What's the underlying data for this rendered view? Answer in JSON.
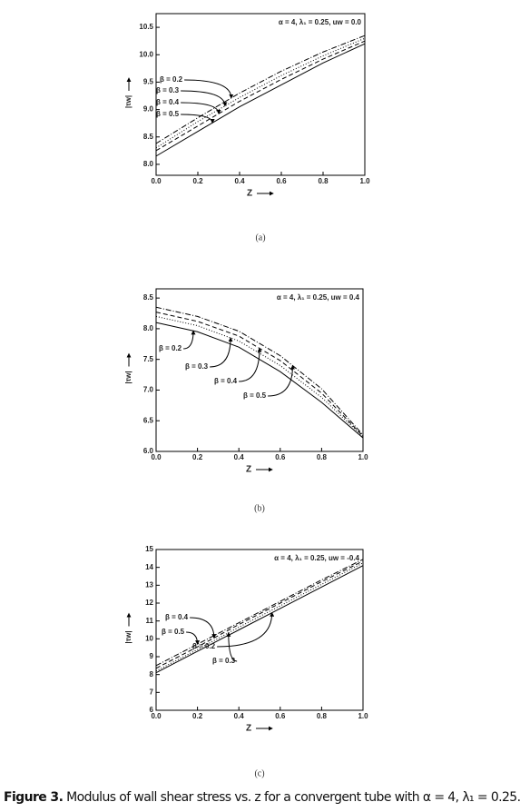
{
  "chart_data": [
    {
      "type": "line",
      "annotation": "α = 4, λ₁ = 0.25, uw = 0.0",
      "panel": "(a)",
      "x_label": "Z",
      "y_label": "|τw|",
      "x": [
        0,
        0.2,
        0.4,
        0.6,
        0.8,
        1.0
      ],
      "series": [
        {
          "name": "β = 0.2",
          "color": "#000000",
          "dash": "6 2 1 2",
          "values": [
            8.38,
            8.85,
            9.3,
            9.7,
            10.05,
            10.35
          ]
        },
        {
          "name": "β = 0.3",
          "color": "#000000",
          "dash": "1 2",
          "values": [
            8.3,
            8.78,
            9.22,
            9.62,
            9.98,
            10.3
          ]
        },
        {
          "name": "β = 0.4",
          "color": "#000000",
          "dash": "5 3",
          "values": [
            8.25,
            8.7,
            9.15,
            9.55,
            9.92,
            10.25
          ]
        },
        {
          "name": "β = 0.5",
          "color": "#000000",
          "dash": "none",
          "values": [
            8.15,
            8.6,
            9.05,
            9.45,
            9.85,
            10.2
          ]
        }
      ],
      "xlim": [
        0,
        1.0
      ],
      "xticks": [
        {
          "value": 0,
          "label": "0.0"
        },
        0.2,
        0.4,
        0.6,
        0.8,
        {
          "value": 1.0,
          "label": "1.0"
        }
      ],
      "ylim": [
        7.8,
        10.75
      ],
      "yticks": [
        {
          "value": 8.0,
          "label": "8.0"
        },
        8.5,
        {
          "value": 9.0,
          "label": "9.0"
        },
        9.5,
        {
          "value": 10.0,
          "label": "10.0"
        },
        10.5
      ]
    },
    {
      "type": "line",
      "annotation": "α = 4, λ₁ = 0.25, uw = 0.4",
      "panel": "(b)",
      "x_label": "Z",
      "y_label": "|τw|",
      "x": [
        0,
        0.2,
        0.4,
        0.6,
        0.8,
        1.0
      ],
      "series": [
        {
          "name": "β = 0.2",
          "color": "#000000",
          "dash": "none",
          "values": [
            8.1,
            7.95,
            7.7,
            7.3,
            6.8,
            6.22
          ]
        },
        {
          "name": "β = 0.3",
          "color": "#000000",
          "dash": "1 2",
          "values": [
            8.2,
            8.05,
            7.8,
            7.4,
            6.88,
            6.24
          ]
        },
        {
          "name": "β = 0.4",
          "color": "#000000",
          "dash": "5 3",
          "values": [
            8.27,
            8.12,
            7.88,
            7.48,
            6.95,
            6.25
          ]
        },
        {
          "name": "β = 0.5",
          "color": "#000000",
          "dash": "6 2 1 2",
          "values": [
            8.35,
            8.2,
            7.96,
            7.56,
            7.02,
            6.27
          ]
        }
      ],
      "xlim": [
        0,
        1.0
      ],
      "xticks": [
        {
          "value": 0,
          "label": "0.0"
        },
        0.2,
        0.4,
        0.6,
        0.8,
        {
          "value": 1.0,
          "label": "1.0"
        }
      ],
      "ylim": [
        6.0,
        8.65
      ],
      "yticks": [
        {
          "value": 6.0,
          "label": "6.0"
        },
        6.5,
        {
          "value": 7.0,
          "label": "7.0"
        },
        7.5,
        {
          "value": 8.0,
          "label": "8.0"
        },
        8.5
      ]
    },
    {
      "type": "line",
      "annotation": "α = 4, λ₁ = 0.25, uw = -0.4",
      "panel": "(c)",
      "x_label": "Z",
      "y_label": "|τw|",
      "x": [
        0,
        0.2,
        0.4,
        0.6,
        0.8,
        1.0
      ],
      "series": [
        {
          "name": "β = 0.2",
          "color": "#000000",
          "dash": "none",
          "values": [
            8.1,
            9.3,
            10.5,
            11.7,
            12.9,
            14.1
          ]
        },
        {
          "name": "β = 0.3",
          "color": "#000000",
          "dash": "1 2",
          "values": [
            8.2,
            9.4,
            10.65,
            11.85,
            13.05,
            14.25
          ]
        },
        {
          "name": "β = 0.4",
          "color": "#000000",
          "dash": "5 3",
          "values": [
            8.35,
            9.55,
            10.8,
            12.0,
            13.2,
            14.35
          ]
        },
        {
          "name": "β = 0.5",
          "color": "#000000",
          "dash": "6 2 1 2",
          "values": [
            8.5,
            9.7,
            10.9,
            12.1,
            13.3,
            14.45
          ]
        }
      ],
      "xlim": [
        0,
        1.0
      ],
      "xticks": [
        {
          "value": 0,
          "label": "0.0"
        },
        0.2,
        0.4,
        0.6,
        0.8,
        {
          "value": 1.0,
          "label": "1.0"
        }
      ],
      "ylim": [
        6,
        15
      ],
      "yticks": [
        6,
        7,
        8,
        9,
        10,
        11,
        12,
        13,
        14,
        15
      ]
    }
  ],
  "caption": {
    "label": "Figure 3.",
    "text": "Modulus of wall shear stress vs. z for a convergent tube with α = 4, λ₁ = 0.25."
  }
}
